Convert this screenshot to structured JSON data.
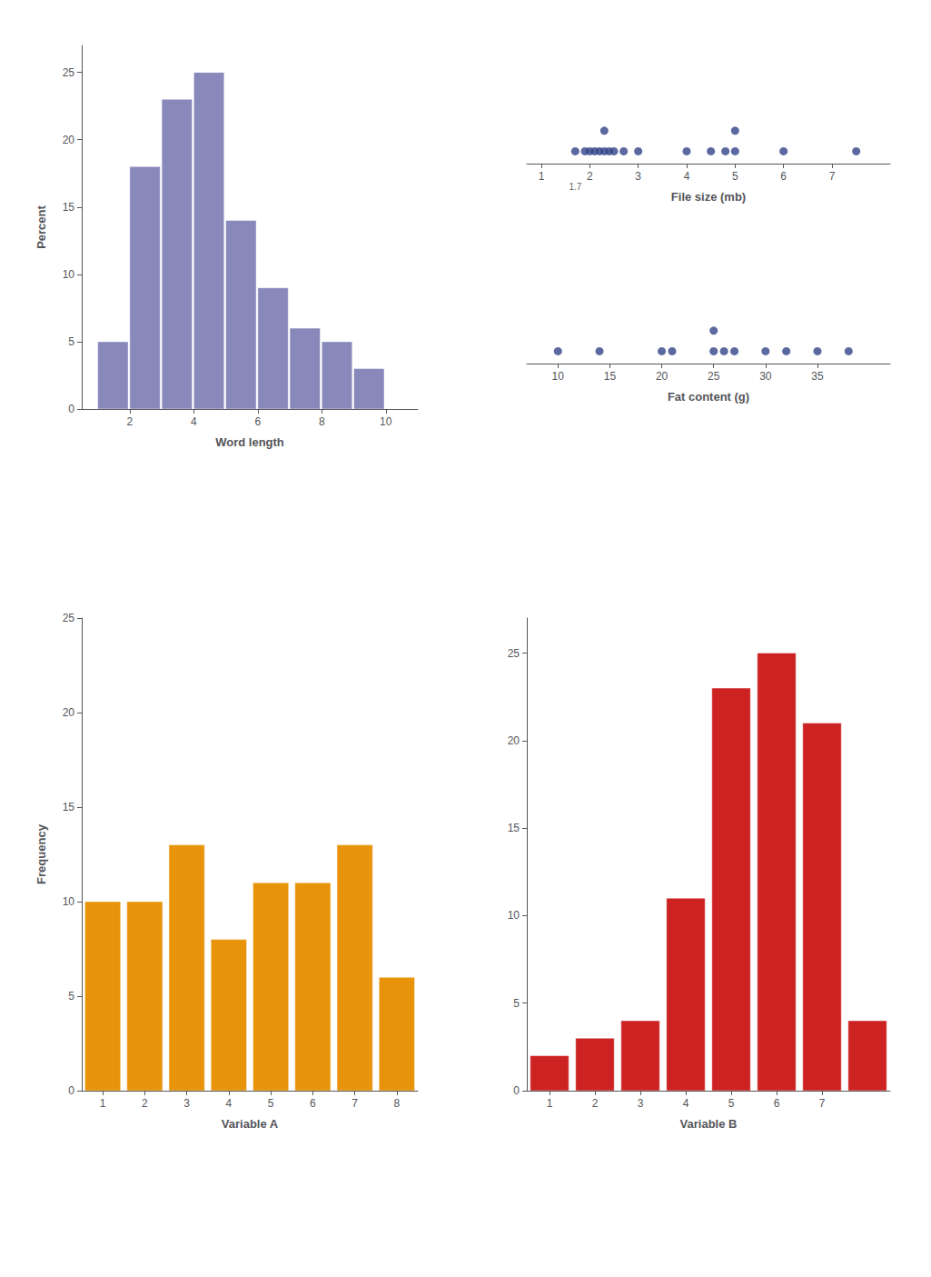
{
  "chart_data": [
    {
      "type": "histogram",
      "xlabel": "Word length",
      "ylabel": "Percent",
      "bins": [
        1,
        2,
        3,
        4,
        5,
        6,
        7,
        8,
        9,
        10
      ],
      "values": [
        5,
        18,
        23,
        25,
        14,
        9,
        6,
        5,
        3
      ],
      "color": "#8888bb",
      "xlim": [
        0.5,
        11
      ],
      "ylim": [
        0,
        27
      ],
      "xticks": [
        2,
        4,
        6,
        8,
        10
      ],
      "yticks": [
        0,
        5,
        10,
        15,
        20,
        25
      ],
      "grid": false
    },
    {
      "type": "dotplot",
      "xlabel": "File size (mb)",
      "x": [
        1.7,
        1.9,
        2.0,
        2.1,
        2.2,
        2.3,
        2.3,
        2.4,
        2.5,
        2.7,
        3.0,
        4.0,
        4.5,
        4.8,
        5.0,
        5.0,
        6.0,
        7.5
      ],
      "color": "#334488",
      "xlim": [
        0.7,
        8.2
      ],
      "xticks": [
        1,
        2,
        3,
        4,
        5,
        6,
        7
      ],
      "annotations": [
        {
          "text": "1.7",
          "x": 1.7
        }
      ],
      "tick_labels": "x",
      "grid": false
    },
    {
      "type": "dotplot",
      "xlabel": "Fat content (g)",
      "x": [
        10,
        14,
        20,
        21,
        25,
        25,
        26,
        27,
        30,
        32,
        35,
        38
      ],
      "color": "#334488",
      "xlim": [
        7,
        42
      ],
      "xticks": [
        10,
        15,
        20,
        25,
        30,
        35
      ],
      "tick_labels": "x",
      "grid": false
    },
    {
      "type": "bar",
      "xlabel": "Variable A",
      "ylabel": "Frequency",
      "x": [
        1,
        2,
        3,
        4,
        5,
        6,
        7,
        8
      ],
      "values": [
        10,
        10,
        13,
        8,
        11,
        11,
        13,
        6
      ],
      "color": "#e8940a",
      "xlim": [
        0.5,
        8.5
      ],
      "ylim": [
        0,
        25
      ],
      "xticks": [
        1,
        2,
        3,
        4,
        5,
        6,
        7,
        8
      ],
      "yticks": [
        0,
        5,
        10,
        15,
        20,
        25
      ],
      "grid": false
    },
    {
      "type": "bar",
      "xlabel": "Variable B",
      "x": [
        1,
        2,
        3,
        4,
        5,
        6,
        7,
        8
      ],
      "values": [
        2,
        3,
        4,
        11,
        23,
        25,
        21,
        4
      ],
      "color": "#cc2222",
      "xlim": [
        0.5,
        8.5
      ],
      "ylim": [
        0,
        27
      ],
      "xticks": [
        1,
        2,
        3,
        4,
        5,
        6,
        7
      ],
      "yticks": [
        0,
        5,
        10,
        15,
        20,
        25
      ],
      "grid": false
    }
  ]
}
